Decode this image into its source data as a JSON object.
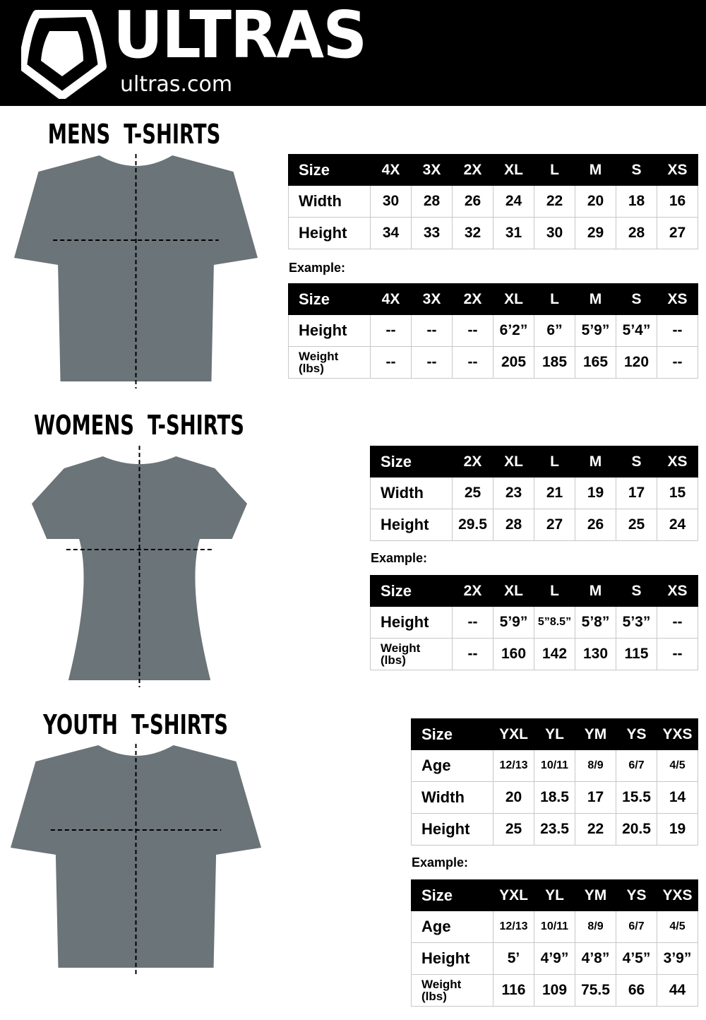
{
  "brand": {
    "name": "ULTRAS",
    "url": "ultras.com"
  },
  "colors": {
    "header_bg": "#000000",
    "shirt": "#6b7478",
    "border": "#c8c8c8"
  },
  "sections": [
    {
      "id": "mens",
      "title": "MENS  T-SHIRTS",
      "chart": {
        "header": [
          "Size",
          "4X",
          "3X",
          "2X",
          "XL",
          "L",
          "M",
          "S",
          "XS"
        ],
        "rows": [
          [
            "Width",
            "30",
            "28",
            "26",
            "24",
            "22",
            "20",
            "18",
            "16"
          ],
          [
            "Height",
            "34",
            "33",
            "32",
            "31",
            "30",
            "29",
            "28",
            "27"
          ]
        ]
      },
      "example_label": "Example:",
      "example": {
        "header": [
          "Size",
          "4X",
          "3X",
          "2X",
          "XL",
          "L",
          "M",
          "S",
          "XS"
        ],
        "rows": [
          [
            "Height",
            "--",
            "--",
            "--",
            "6’2”",
            "6”",
            "5’9”",
            "5’4”",
            "--"
          ],
          [
            "Weight (lbs)",
            "--",
            "--",
            "--",
            "205",
            "185",
            "165",
            "120",
            "--"
          ]
        ]
      }
    },
    {
      "id": "womens",
      "title": "WOMENS  T-SHIRTS",
      "chart": {
        "header": [
          "Size",
          "2X",
          "XL",
          "L",
          "M",
          "S",
          "XS"
        ],
        "rows": [
          [
            "Width",
            "25",
            "23",
            "21",
            "19",
            "17",
            "15"
          ],
          [
            "Height",
            "29.5",
            "28",
            "27",
            "26",
            "25",
            "24"
          ]
        ]
      },
      "example_label": "Example:",
      "example": {
        "header": [
          "Size",
          "2X",
          "XL",
          "L",
          "M",
          "S",
          "XS"
        ],
        "rows": [
          [
            "Height",
            "--",
            "5’9”",
            "5”8.5”",
            "5’8”",
            "5’3”",
            "--"
          ],
          [
            "Weight (lbs)",
            "--",
            "160",
            "142",
            "130",
            "115",
            "--"
          ]
        ]
      }
    },
    {
      "id": "youth",
      "title": "YOUTH  T-SHIRTS",
      "chart": {
        "header": [
          "Size",
          "YXL",
          "YL",
          "YM",
          "YS",
          "YXS"
        ],
        "rows": [
          [
            "Age",
            "12/13",
            "10/11",
            "8/9",
            "6/7",
            "4/5"
          ],
          [
            "Width",
            "20",
            "18.5",
            "17",
            "15.5",
            "14"
          ],
          [
            "Height",
            "25",
            "23.5",
            "22",
            "20.5",
            "19"
          ]
        ]
      },
      "example_label": "Example:",
      "example": {
        "header": [
          "Size",
          "YXL",
          "YL",
          "YM",
          "YS",
          "YXS"
        ],
        "rows": [
          [
            "Age",
            "12/13",
            "10/11",
            "8/9",
            "6/7",
            "4/5"
          ],
          [
            "Height",
            "5’",
            "4’9”",
            "4’8”",
            "4’5”",
            "3’9”"
          ],
          [
            "Weight (lbs)",
            "116",
            "109",
            "75.5",
            "66",
            "44"
          ]
        ]
      }
    }
  ]
}
